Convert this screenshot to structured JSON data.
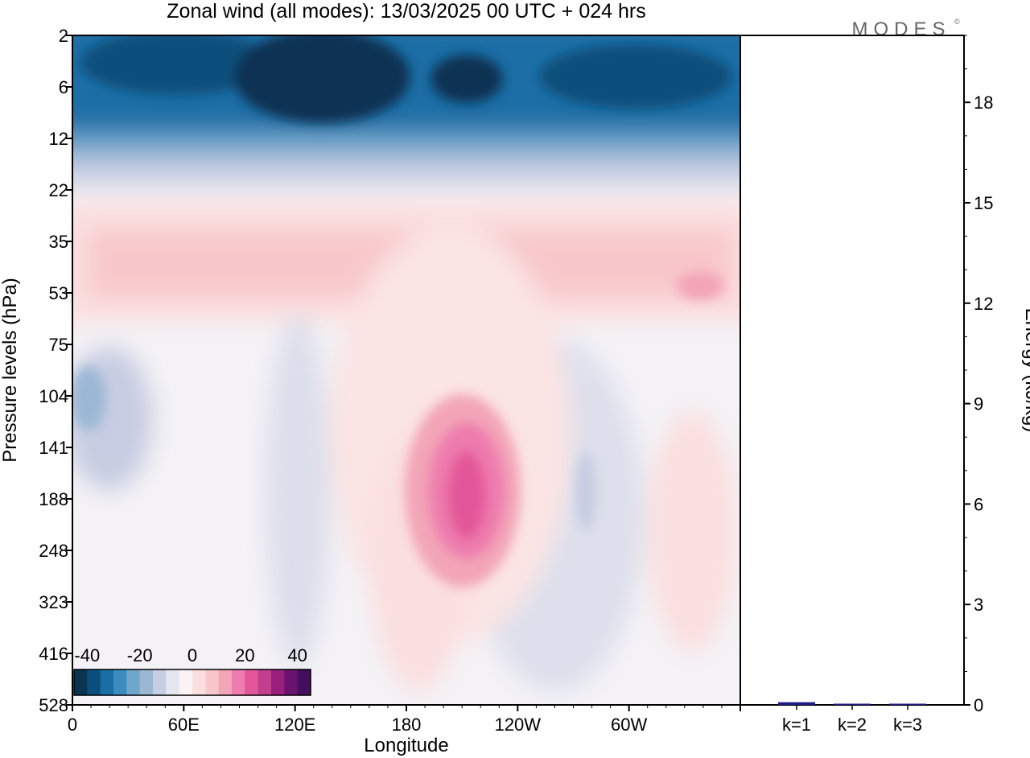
{
  "header": {
    "title": "Zonal wind (all modes):  13/03/2025  00 UTC  + 024 hrs",
    "brand": "MODES"
  },
  "colors": {
    "contour_palette": [
      "#0b3352",
      "#0d4f7c",
      "#1a6ea6",
      "#3b8cc0",
      "#6fa6cc",
      "#9cb7d4",
      "#c7cde2",
      "#e5e7f0",
      "#fbf2f3",
      "#fbdfdf",
      "#f8c7cb",
      "#f3a5b8",
      "#ee7cad",
      "#e35699",
      "#c43e8f",
      "#9a1f7d",
      "#6b1170",
      "#44105e"
    ],
    "bar": "#1d1a8a"
  },
  "chart_data": [
    {
      "type": "heatmap",
      "title": "Zonal wind (all modes):  13/03/2025  00 UTC  + 024 hrs",
      "xlabel": "Longitude",
      "ylabel": "Pressure levels (hPa)",
      "x_ticks": [
        "0",
        "60E",
        "120E",
        "180",
        "120W",
        "60W"
      ],
      "y_ticks": [
        "2",
        "6",
        "12",
        "22",
        "35",
        "53",
        "75",
        "104",
        "141",
        "188",
        "248",
        "323",
        "416",
        "528"
      ],
      "colorbar": {
        "tick_labels": [
          "-40",
          "-20",
          "0",
          "20",
          "40"
        ],
        "range": [
          -45,
          45
        ],
        "step": 5
      },
      "features": [
        {
          "lon": 150,
          "level": "6",
          "value": -42
        },
        {
          "lon": 225,
          "level": "6",
          "value": -42
        },
        {
          "lon": 300,
          "level": "6",
          "value": -38
        },
        {
          "lon": 205,
          "level": "188",
          "value": 27
        },
        {
          "lon": 5,
          "level": "104",
          "value": -12
        },
        {
          "lon": 320,
          "level": "53",
          "value": 12
        }
      ]
    },
    {
      "type": "bar",
      "categories": [
        "k=1",
        "k=2",
        "k=3"
      ],
      "values": [
        0.08,
        0.02,
        0.01
      ],
      "ylabel": "Energy (kJ/kg)",
      "y_ticks": [
        "0",
        "3",
        "6",
        "9",
        "12",
        "15",
        "18"
      ],
      "ylim": [
        0,
        20
      ]
    }
  ]
}
